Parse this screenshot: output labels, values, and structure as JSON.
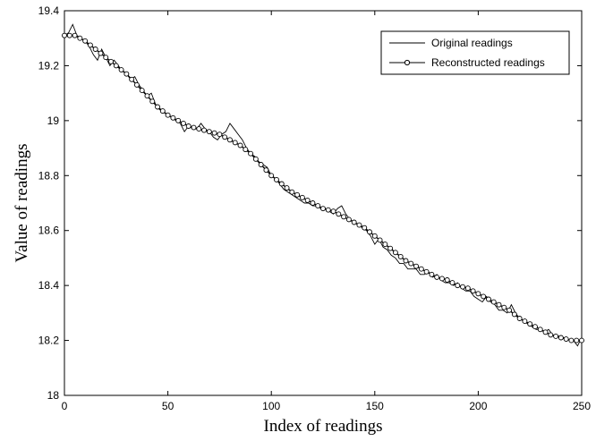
{
  "chart_data": {
    "type": "line",
    "title": "",
    "xlabel": "Index of readings",
    "ylabel": "Value of readings",
    "xlim": [
      0,
      250
    ],
    "ylim": [
      18,
      19.4
    ],
    "xticks": [
      0,
      50,
      100,
      150,
      200,
      250
    ],
    "yticks": [
      18,
      18.2,
      18.4,
      18.6,
      18.8,
      19,
      19.2,
      19.4
    ],
    "grid": false,
    "legend_position": "top-right",
    "series": [
      {
        "name": "Original readings",
        "style": "thin-line",
        "color": "#000000",
        "points": [
          [
            0,
            19.31
          ],
          [
            2,
            19.32
          ],
          [
            4,
            19.35
          ],
          [
            6,
            19.31
          ],
          [
            8,
            19.3
          ],
          [
            10,
            19.29
          ],
          [
            12,
            19.27
          ],
          [
            14,
            19.24
          ],
          [
            16,
            19.22
          ],
          [
            18,
            19.26
          ],
          [
            20,
            19.23
          ],
          [
            22,
            19.2
          ],
          [
            24,
            19.22
          ],
          [
            26,
            19.2
          ],
          [
            28,
            19.18
          ],
          [
            30,
            19.17
          ],
          [
            32,
            19.15
          ],
          [
            34,
            19.16
          ],
          [
            36,
            19.13
          ],
          [
            38,
            19.11
          ],
          [
            40,
            19.09
          ],
          [
            42,
            19.1
          ],
          [
            44,
            19.06
          ],
          [
            46,
            19.04
          ],
          [
            48,
            19.03
          ],
          [
            50,
            19.02
          ],
          [
            52,
            19.01
          ],
          [
            54,
            19.0
          ],
          [
            56,
            18.99
          ],
          [
            58,
            18.96
          ],
          [
            60,
            18.98
          ],
          [
            62,
            18.97
          ],
          [
            64,
            18.97
          ],
          [
            66,
            18.99
          ],
          [
            68,
            18.97
          ],
          [
            70,
            18.96
          ],
          [
            72,
            18.94
          ],
          [
            74,
            18.93
          ],
          [
            76,
            18.95
          ],
          [
            78,
            18.96
          ],
          [
            80,
            18.99
          ],
          [
            82,
            18.97
          ],
          [
            84,
            18.95
          ],
          [
            86,
            18.93
          ],
          [
            88,
            18.9
          ],
          [
            90,
            18.88
          ],
          [
            92,
            18.87
          ],
          [
            94,
            18.85
          ],
          [
            96,
            18.84
          ],
          [
            98,
            18.83
          ],
          [
            100,
            18.8
          ],
          [
            102,
            18.79
          ],
          [
            104,
            18.77
          ],
          [
            106,
            18.75
          ],
          [
            108,
            18.74
          ],
          [
            110,
            18.73
          ],
          [
            112,
            18.72
          ],
          [
            114,
            18.71
          ],
          [
            116,
            18.7
          ],
          [
            118,
            18.7
          ],
          [
            120,
            18.69
          ],
          [
            122,
            18.69
          ],
          [
            124,
            18.68
          ],
          [
            126,
            18.68
          ],
          [
            128,
            18.67
          ],
          [
            130,
            18.66
          ],
          [
            132,
            18.68
          ],
          [
            134,
            18.69
          ],
          [
            136,
            18.66
          ],
          [
            138,
            18.64
          ],
          [
            140,
            18.63
          ],
          [
            142,
            18.62
          ],
          [
            144,
            18.61
          ],
          [
            146,
            18.6
          ],
          [
            148,
            18.58
          ],
          [
            150,
            18.55
          ],
          [
            152,
            18.57
          ],
          [
            154,
            18.54
          ],
          [
            156,
            18.53
          ],
          [
            158,
            18.51
          ],
          [
            160,
            18.5
          ],
          [
            162,
            18.48
          ],
          [
            164,
            18.48
          ],
          [
            166,
            18.46
          ],
          [
            168,
            18.46
          ],
          [
            170,
            18.46
          ],
          [
            172,
            18.44
          ],
          [
            174,
            18.44
          ],
          [
            176,
            18.45
          ],
          [
            178,
            18.43
          ],
          [
            180,
            18.44
          ],
          [
            182,
            18.42
          ],
          [
            184,
            18.41
          ],
          [
            186,
            18.41
          ],
          [
            188,
            18.4
          ],
          [
            190,
            18.41
          ],
          [
            192,
            18.39
          ],
          [
            194,
            18.38
          ],
          [
            196,
            18.38
          ],
          [
            198,
            18.36
          ],
          [
            200,
            18.35
          ],
          [
            202,
            18.34
          ],
          [
            204,
            18.36
          ],
          [
            206,
            18.34
          ],
          [
            208,
            18.33
          ],
          [
            210,
            18.31
          ],
          [
            212,
            18.31
          ],
          [
            214,
            18.3
          ],
          [
            216,
            18.33
          ],
          [
            218,
            18.3
          ],
          [
            220,
            18.28
          ],
          [
            222,
            18.27
          ],
          [
            224,
            18.26
          ],
          [
            226,
            18.25
          ],
          [
            228,
            18.24
          ],
          [
            230,
            18.24
          ],
          [
            232,
            18.23
          ],
          [
            234,
            18.24
          ],
          [
            236,
            18.22
          ],
          [
            238,
            18.22
          ],
          [
            240,
            18.21
          ],
          [
            242,
            18.21
          ],
          [
            244,
            18.2
          ],
          [
            246,
            18.2
          ],
          [
            248,
            18.18
          ],
          [
            250,
            18.21
          ]
        ]
      },
      {
        "name": "Reconstructed readings",
        "style": "line-with-circle-markers",
        "color": "#000000",
        "points": [
          [
            0,
            19.31
          ],
          [
            5,
            19.31
          ],
          [
            10,
            19.29
          ],
          [
            15,
            19.26
          ],
          [
            20,
            19.23
          ],
          [
            25,
            19.2
          ],
          [
            30,
            19.17
          ],
          [
            35,
            19.13
          ],
          [
            40,
            19.09
          ],
          [
            45,
            19.05
          ],
          [
            50,
            19.02
          ],
          [
            55,
            19.0
          ],
          [
            60,
            18.98
          ],
          [
            65,
            18.97
          ],
          [
            70,
            18.96
          ],
          [
            75,
            18.95
          ],
          [
            80,
            18.93
          ],
          [
            85,
            18.91
          ],
          [
            90,
            18.88
          ],
          [
            95,
            18.84
          ],
          [
            100,
            18.8
          ],
          [
            105,
            18.77
          ],
          [
            110,
            18.74
          ],
          [
            115,
            18.72
          ],
          [
            120,
            18.7
          ],
          [
            125,
            18.68
          ],
          [
            130,
            18.67
          ],
          [
            135,
            18.65
          ],
          [
            140,
            18.63
          ],
          [
            145,
            18.61
          ],
          [
            150,
            18.58
          ],
          [
            155,
            18.55
          ],
          [
            160,
            18.52
          ],
          [
            165,
            18.49
          ],
          [
            170,
            18.47
          ],
          [
            175,
            18.45
          ],
          [
            180,
            18.43
          ],
          [
            185,
            18.42
          ],
          [
            190,
            18.4
          ],
          [
            195,
            18.39
          ],
          [
            200,
            18.37
          ],
          [
            205,
            18.35
          ],
          [
            210,
            18.33
          ],
          [
            215,
            18.31
          ],
          [
            220,
            18.28
          ],
          [
            225,
            18.26
          ],
          [
            230,
            18.24
          ],
          [
            235,
            18.22
          ],
          [
            240,
            18.21
          ],
          [
            245,
            18.2
          ],
          [
            250,
            18.2
          ]
        ]
      }
    ]
  }
}
